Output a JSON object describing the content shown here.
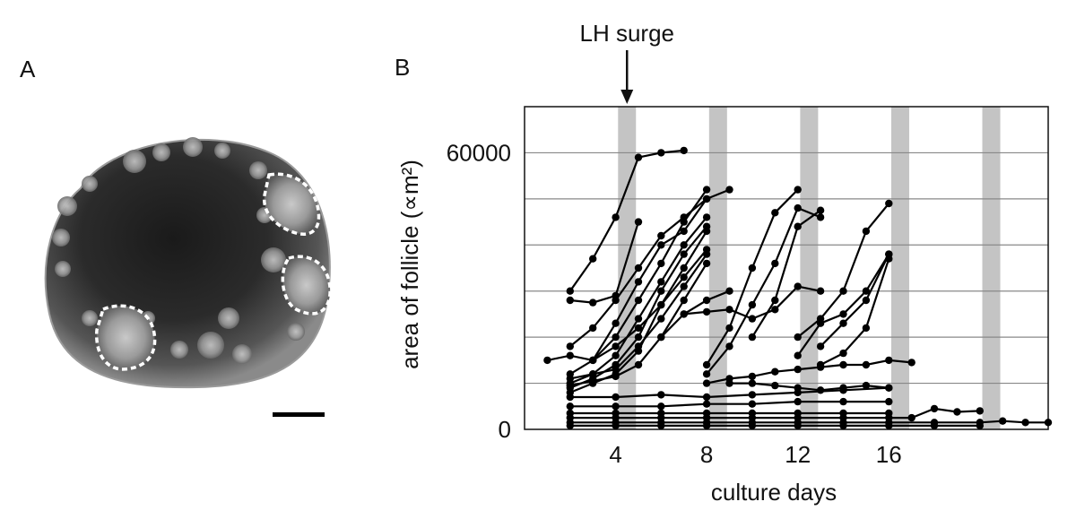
{
  "panel_a": {
    "letter": "A"
  },
  "panel_b": {
    "letter": "B"
  },
  "chart_data": {
    "type": "line",
    "xlabel": "culture days",
    "ylabel": "area of follicle (∝m²)",
    "xticks": [
      4,
      8,
      12,
      16
    ],
    "yticks": [
      0,
      60000
    ],
    "xlim": [
      0,
      23
    ],
    "ylim": [
      0,
      70000
    ],
    "grid_y": [
      10000,
      20000,
      30000,
      40000,
      50000,
      60000
    ],
    "shaded_days": [
      4.5,
      8.5,
      12.5,
      16.5,
      20.5
    ],
    "annotation": "LH surge",
    "annotation_x": 4.5,
    "series": [
      {
        "x": [
          2,
          3,
          4,
          5,
          6,
          7
        ],
        "y": [
          30000,
          37000,
          46000,
          59000,
          60000,
          60500
        ]
      },
      {
        "x": [
          2,
          3,
          4,
          5
        ],
        "y": [
          28000,
          27500,
          29000,
          45000
        ]
      },
      {
        "x": [
          2,
          3,
          4,
          5,
          6,
          7,
          8
        ],
        "y": [
          18000,
          22000,
          28000,
          35000,
          42000,
          46000,
          50000
        ]
      },
      {
        "x": [
          3,
          4,
          5,
          6,
          7,
          8,
          9
        ],
        "y": [
          15000,
          23000,
          32000,
          40000,
          43000,
          50000,
          52000
        ]
      },
      {
        "x": [
          2,
          3,
          4,
          5,
          6,
          7,
          8
        ],
        "y": [
          12000,
          15000,
          20000,
          28000,
          36000,
          45000,
          52000
        ]
      },
      {
        "x": [
          2,
          3,
          4,
          5,
          6,
          7,
          8
        ],
        "y": [
          10000,
          12000,
          16000,
          24000,
          32000,
          40000,
          46000
        ]
      },
      {
        "x": [
          2,
          3,
          4,
          5,
          6,
          7,
          8
        ],
        "y": [
          9000,
          11000,
          14000,
          20000,
          30000,
          38000,
          44000
        ]
      },
      {
        "x": [
          2,
          3,
          4,
          5,
          6,
          7,
          8
        ],
        "y": [
          8000,
          10000,
          12000,
          17000,
          27000,
          35000,
          43000
        ]
      },
      {
        "x": [
          1,
          2,
          3,
          4,
          5,
          6,
          7,
          8
        ],
        "y": [
          15000,
          16000,
          15000,
          18000,
          22000,
          27000,
          33000,
          39000
        ]
      },
      {
        "x": [
          2,
          3,
          4,
          5,
          6,
          7,
          8
        ],
        "y": [
          11000,
          12000,
          13000,
          18000,
          24000,
          31000,
          38000
        ]
      },
      {
        "x": [
          2,
          3,
          4,
          5,
          6,
          7,
          8
        ],
        "y": [
          9500,
          10500,
          11500,
          14000,
          20000,
          28000,
          36000
        ]
      },
      {
        "x": [
          6,
          7,
          8,
          9
        ],
        "y": [
          20000,
          25000,
          28000,
          30000
        ]
      },
      {
        "x": [
          8,
          9,
          10,
          11,
          12
        ],
        "y": [
          14000,
          22000,
          35000,
          47000,
          52000
        ]
      },
      {
        "x": [
          8,
          9,
          10,
          11,
          12,
          13
        ],
        "y": [
          12000,
          18000,
          27000,
          36000,
          48000,
          46000
        ]
      },
      {
        "x": [
          7,
          8,
          9,
          10,
          11,
          12,
          13
        ],
        "y": [
          25000,
          25500,
          26000,
          24000,
          26000,
          31000,
          30000
        ]
      },
      {
        "x": [
          10,
          11,
          12,
          13
        ],
        "y": [
          20000,
          28000,
          44000,
          47500
        ]
      },
      {
        "x": [
          12,
          13,
          14,
          15,
          16
        ],
        "y": [
          20000,
          24000,
          30000,
          43000,
          49000
        ]
      },
      {
        "x": [
          12,
          13,
          14,
          15,
          16
        ],
        "y": [
          16000,
          23000,
          25000,
          30000,
          38000
        ]
      },
      {
        "x": [
          13,
          14,
          15,
          16
        ],
        "y": [
          18000,
          23000,
          28000,
          38000
        ]
      },
      {
        "x": [
          13,
          14,
          15,
          16
        ],
        "y": [
          14000,
          16500,
          22000,
          37000
        ]
      },
      {
        "x": [
          8,
          9,
          10,
          11,
          12,
          13,
          14,
          15,
          16,
          17
        ],
        "y": [
          10000,
          11000,
          11500,
          12500,
          13000,
          13500,
          14000,
          14000,
          15000,
          14500
        ]
      },
      {
        "x": [
          9,
          10,
          11,
          12,
          13,
          14,
          15,
          16
        ],
        "y": [
          10000,
          10000,
          9500,
          9000,
          8500,
          9000,
          9500,
          9000
        ]
      },
      {
        "x": [
          2,
          4,
          6,
          8,
          10,
          12,
          14,
          16
        ],
        "y": [
          7000,
          7000,
          7500,
          7000,
          7500,
          8000,
          8500,
          9000
        ]
      },
      {
        "x": [
          2,
          4,
          6,
          8,
          10,
          12,
          14,
          16
        ],
        "y": [
          5000,
          5000,
          5000,
          5500,
          5500,
          6000,
          6000,
          6000
        ]
      },
      {
        "x": [
          2,
          4,
          6,
          8,
          10,
          12,
          14,
          16
        ],
        "y": [
          3500,
          3500,
          3500,
          3500,
          3500,
          3500,
          3500,
          3500
        ]
      },
      {
        "x": [
          2,
          4,
          6,
          8,
          10,
          12,
          14,
          16,
          17,
          18,
          19,
          20
        ],
        "y": [
          2500,
          2500,
          2500,
          2500,
          2500,
          2500,
          2500,
          2500,
          2500,
          4500,
          3800,
          4000
        ]
      },
      {
        "x": [
          2,
          4,
          6,
          8,
          10,
          12,
          14,
          16,
          18,
          20,
          21,
          22,
          23
        ],
        "y": [
          1500,
          1500,
          1500,
          1500,
          1500,
          1500,
          1500,
          1500,
          1500,
          1500,
          1800,
          1500,
          1500
        ]
      },
      {
        "x": [
          2,
          4,
          6,
          8,
          10,
          12,
          14,
          16,
          18,
          20
        ],
        "y": [
          800,
          800,
          800,
          800,
          800,
          800,
          800,
          800,
          800,
          800
        ]
      }
    ]
  }
}
